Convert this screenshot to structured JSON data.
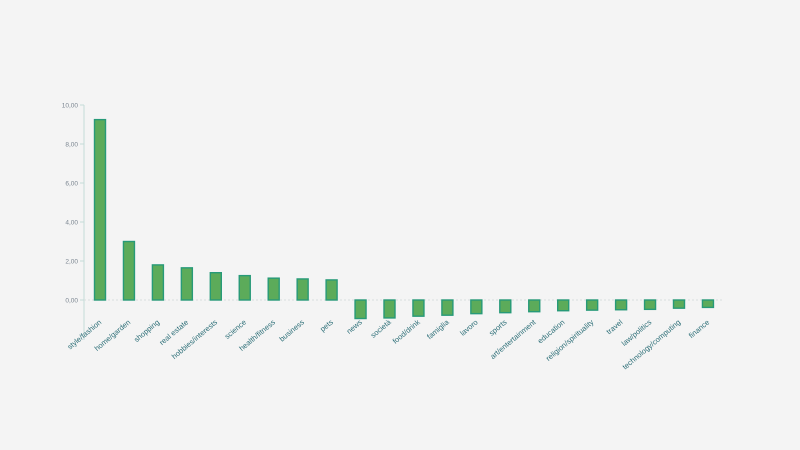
{
  "colors": {
    "background": "#f4f4f4",
    "bar_fill": "#5cab5a",
    "bar_stroke": "#279a78",
    "axis_line": "#c5dbd8",
    "zero_grid": "#d8dede",
    "tick_text": "#7a8590",
    "category_text": "#2d6f78"
  },
  "chart_data": {
    "type": "bar",
    "title": "",
    "xlabel": "",
    "ylabel": "",
    "ylim": [
      -1,
      10
    ],
    "yticks": [
      "0,00",
      "2,00",
      "4,00",
      "6,00",
      "8,00",
      "10,00"
    ],
    "ytick_values": [
      0,
      2,
      4,
      6,
      8,
      10
    ],
    "grid": false,
    "legend": "none",
    "categories": [
      "style/fashion",
      "home/garden",
      "shopping",
      "real estate",
      "hobbies/interests",
      "science",
      "health/fitness",
      "business",
      "pets",
      "news",
      "società",
      "food/drink",
      "famiglia",
      "lavoro",
      "sports",
      "art/entertainment",
      "education",
      "religion/spirituality",
      "travel",
      "law/politics",
      "technology/computing",
      "finance"
    ],
    "values": [
      9.25,
      3.0,
      1.8,
      1.65,
      1.4,
      1.25,
      1.12,
      1.08,
      1.03,
      -0.95,
      -0.92,
      -0.83,
      -0.78,
      -0.7,
      -0.65,
      -0.6,
      -0.55,
      -0.52,
      -0.5,
      -0.48,
      -0.42,
      -0.38
    ]
  }
}
